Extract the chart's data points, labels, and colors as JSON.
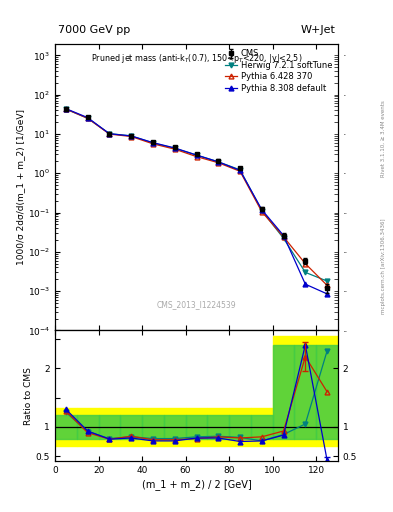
{
  "title_left": "7000 GeV pp",
  "title_right": "W+Jet",
  "plot_title": "Pruned jet mass (anti-k$_T$(0.7), 150<p$_T$<220, |y|<2.5)",
  "xlabel": "(m_1 + m_2) / 2 [GeV]",
  "ylabel_main": "1000/σ 2dσ/d(m_1 + m_2) [1/GeV]",
  "ylabel_ratio": "Ratio to CMS",
  "watermark": "CMS_2013_I1224539",
  "right_label": "mcplots.cern.ch [arXiv:1306.3436]",
  "right_label2": "Rivet 3.1.10, ≥ 3.4M events",
  "x_data": [
    5,
    15,
    25,
    35,
    45,
    55,
    65,
    75,
    85,
    95,
    105,
    115,
    125
  ],
  "cms_y": [
    42,
    27,
    10,
    8.8,
    6.2,
    4.6,
    3.1,
    2.1,
    1.35,
    0.125,
    0.026,
    0.006,
    0.0012
  ],
  "cms_yerr": [
    3,
    2,
    0.8,
    0.7,
    0.5,
    0.4,
    0.25,
    0.18,
    0.12,
    0.015,
    0.004,
    0.001,
    0.0003
  ],
  "herwig_y": [
    43,
    25,
    10.2,
    8.9,
    5.9,
    4.3,
    2.9,
    1.95,
    1.22,
    0.112,
    0.022,
    0.003,
    0.0018
  ],
  "pythia6_y": [
    43,
    25,
    9.9,
    8.6,
    5.6,
    4.1,
    2.65,
    1.85,
    1.12,
    0.105,
    0.024,
    0.005,
    0.0014
  ],
  "pythia8_y": [
    44,
    26,
    10.1,
    8.9,
    6.0,
    4.4,
    2.9,
    1.95,
    1.18,
    0.118,
    0.026,
    0.0015,
    0.00085
  ],
  "ratio_herwig": [
    1.25,
    0.92,
    0.8,
    0.83,
    0.8,
    0.8,
    0.83,
    0.84,
    0.82,
    0.76,
    0.87,
    1.05,
    2.3
  ],
  "ratio_pythia6": [
    1.27,
    0.9,
    0.79,
    0.84,
    0.78,
    0.78,
    0.8,
    0.83,
    0.81,
    0.83,
    0.93,
    2.2,
    1.6
  ],
  "ratio_pythia8": [
    1.3,
    0.93,
    0.79,
    0.81,
    0.76,
    0.76,
    0.81,
    0.81,
    0.75,
    0.76,
    0.86,
    2.4,
    0.43
  ],
  "herwig_color": "#008080",
  "pythia6_color": "#cc2200",
  "pythia8_color": "#0000cc",
  "cms_color": "#000000",
  "band_x_edges": [
    0,
    10,
    20,
    30,
    40,
    50,
    60,
    70,
    80,
    90,
    100,
    110,
    120,
    130
  ],
  "band_yellow_bot": [
    0.68,
    0.68,
    0.68,
    0.68,
    0.68,
    0.68,
    0.68,
    0.68,
    0.68,
    0.68,
    0.68,
    0.68,
    0.68
  ],
  "band_yellow_top": [
    1.32,
    1.32,
    1.32,
    1.32,
    1.32,
    1.32,
    1.32,
    1.32,
    1.32,
    1.32,
    2.55,
    2.55,
    2.55
  ],
  "band_green_bot": [
    0.8,
    0.8,
    0.8,
    0.8,
    0.8,
    0.8,
    0.8,
    0.8,
    0.8,
    0.8,
    0.8,
    0.8,
    0.8
  ],
  "band_green_top": [
    1.2,
    1.2,
    1.2,
    1.2,
    1.2,
    1.2,
    1.2,
    1.2,
    1.2,
    1.2,
    2.4,
    2.4,
    2.4
  ],
  "ylim_main": [
    0.0001,
    2000
  ],
  "ylim_ratio": [
    0.42,
    2.65
  ],
  "xlim": [
    0,
    130
  ]
}
